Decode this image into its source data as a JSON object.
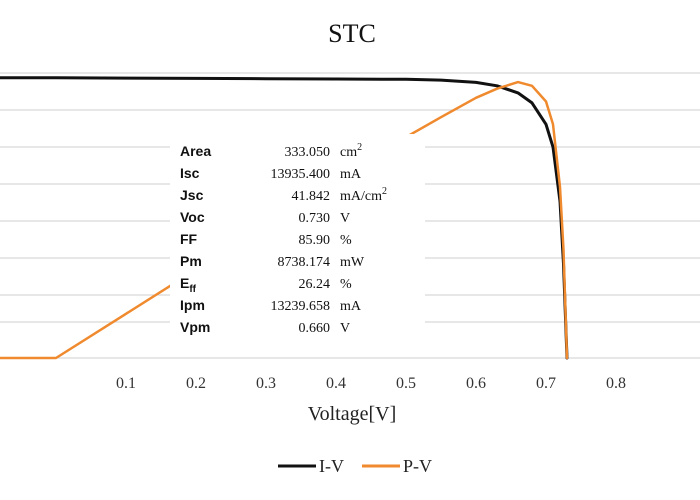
{
  "chart_data": {
    "type": "line",
    "title": "STC",
    "xlabel": "Voltage[V]",
    "ylabel": "",
    "xlim": [
      -0.08,
      0.92
    ],
    "ylim": [
      0,
      1
    ],
    "x_ticks": [
      "0.1",
      "0.2",
      "0.3",
      "0.4",
      "0.5",
      "0.6",
      "0.7",
      "0.8"
    ],
    "grid": "horizontal",
    "legend_position": "bottom-center",
    "series": [
      {
        "name": "I-V",
        "color": "#111111",
        "x": [
          -0.08,
          0.0,
          0.1,
          0.2,
          0.3,
          0.4,
          0.5,
          0.55,
          0.6,
          0.63,
          0.66,
          0.68,
          0.7,
          0.71,
          0.72,
          0.725,
          0.73
        ],
        "y": [
          0.983,
          0.983,
          0.982,
          0.981,
          0.98,
          0.979,
          0.978,
          0.975,
          0.967,
          0.955,
          0.93,
          0.895,
          0.82,
          0.74,
          0.55,
          0.33,
          0.0
        ]
      },
      {
        "name": "P-V",
        "color": "#f08a2e",
        "x": [
          -0.08,
          0.0,
          0.1,
          0.2,
          0.3,
          0.4,
          0.5,
          0.55,
          0.6,
          0.63,
          0.66,
          0.68,
          0.7,
          0.71,
          0.72,
          0.725,
          0.73
        ],
        "y": [
          0.0,
          0.0,
          0.155,
          0.31,
          0.465,
          0.62,
          0.775,
          0.845,
          0.913,
          0.945,
          0.968,
          0.955,
          0.9,
          0.82,
          0.6,
          0.38,
          0.0
        ]
      }
    ],
    "parameters": [
      {
        "name": "Area",
        "value": "333.050",
        "unit": "cm",
        "sup": "2"
      },
      {
        "name": "Isc",
        "value": "13935.400",
        "unit": "mA",
        "sup": ""
      },
      {
        "name": "Jsc",
        "value": "41.842",
        "unit": "mA/cm",
        "sup": "2"
      },
      {
        "name": "Voc",
        "value": "0.730",
        "unit": "V",
        "sup": ""
      },
      {
        "name": "FF",
        "value": "85.90",
        "unit": "%",
        "sup": ""
      },
      {
        "name": "Pm",
        "value": "8738.174",
        "unit": "mW",
        "sup": ""
      },
      {
        "name": "Eff",
        "value": "26.24",
        "unit": "%",
        "sup": ""
      },
      {
        "name": "Ipm",
        "value": "13239.658",
        "unit": "mA",
        "sup": ""
      },
      {
        "name": "Vpm",
        "value": "0.660",
        "unit": "V",
        "sup": ""
      }
    ]
  }
}
